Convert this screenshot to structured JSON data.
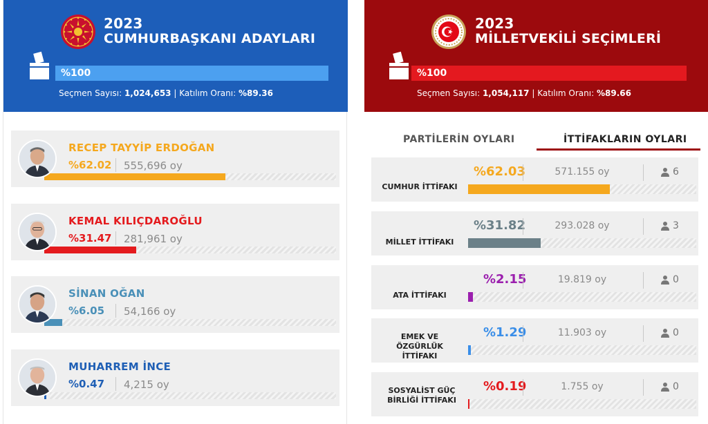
{
  "colors": {
    "presidential_header": "#1d5eb9",
    "presidential_progress": "#4ca0f0",
    "parliament_header": "#9c0a0d",
    "parliament_progress": "#e4191f"
  },
  "presidential": {
    "year": "2023",
    "title": "CUMHURBAŞKANI ADAYLARI",
    "progress_label": "%100",
    "progress_fraction": 1.0,
    "voter_label": "Seçmen Sayısı: ",
    "voter_count": "1,024,653",
    "separator": " | ",
    "turnout_label": "Katılım Oranı: ",
    "turnout": "%89.36",
    "icons": {
      "emblem": "presidential-seal-icon",
      "ballot": "ballot-box-icon"
    },
    "candidates": [
      {
        "name": "RECEP TAYYİP ERDOĞAN",
        "percent": "%62.02",
        "share": 0.6202,
        "votes": "555,696 oy",
        "color": "#f5a81e",
        "avatar": "erdogan-photo"
      },
      {
        "name": "KEMAL KILIÇDAROĞLU",
        "percent": "%31.47",
        "share": 0.3147,
        "votes": "281,961 oy",
        "color": "#e41b1e",
        "avatar": "kilicdaroglu-photo"
      },
      {
        "name": "SİNAN OĞAN",
        "percent": "%6.05",
        "share": 0.0605,
        "votes": "54,166 oy",
        "color": "#4a90b8",
        "avatar": "ogan-photo"
      },
      {
        "name": "MUHARREM İNCE",
        "percent": "%0.47",
        "share": 0.0047,
        "votes": "4,215 oy",
        "color": "#1f5fb5",
        "avatar": "ince-photo"
      }
    ]
  },
  "parliament": {
    "year": "2023",
    "title": "MİLLETVEKİLİ SEÇİMLERİ",
    "progress_label": "%100",
    "progress_fraction": 1.0,
    "voter_label": "Seçmen Sayısı: ",
    "voter_count": "1,054,117",
    "separator": " | ",
    "turnout_label": "Katılım Oranı: ",
    "turnout": "%89.66",
    "icons": {
      "emblem": "parliament-seal-icon",
      "ballot": "ballot-box-icon",
      "seats": "person-icon"
    },
    "tabs": [
      {
        "label": "PARTİLERİN OYLARI",
        "active": false
      },
      {
        "label": "İTTİFAKLARIN OYLARI",
        "active": true
      }
    ],
    "alliances": [
      {
        "name": "CUMHUR İTTİFAKI",
        "percent": "%62.03",
        "share": 0.6203,
        "votes": "571.155 oy",
        "seats": "6",
        "color": "#f5a81e"
      },
      {
        "name": "MİLLET İTTİFAKI",
        "percent": "%31.82",
        "share": 0.3182,
        "votes": "293.028 oy",
        "seats": "3",
        "color": "#6b8088"
      },
      {
        "name": "ATA İTTİFAKI",
        "percent": "%2.15",
        "share": 0.0215,
        "votes": "19.819 oy",
        "seats": "0",
        "color": "#9b1fae"
      },
      {
        "name": "EMEK VE ÖZGÜRLÜK İTTİFAKI",
        "percent": "%1.29",
        "share": 0.0129,
        "votes": "11.903 oy",
        "seats": "0",
        "color": "#3a8ee8"
      },
      {
        "name": "SOSYALİST GÜÇ BİRLİĞİ İTTİFAKI",
        "percent": "%0.19",
        "share": 0.0019,
        "votes": "1.755 oy",
        "seats": "0",
        "color": "#e41b1e"
      }
    ]
  }
}
